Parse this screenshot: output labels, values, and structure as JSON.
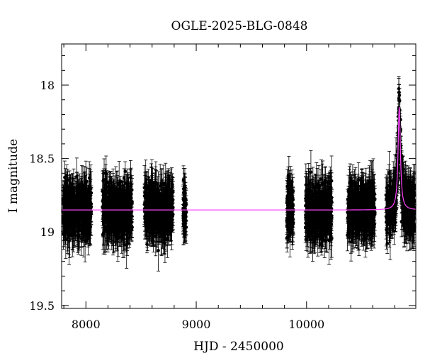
{
  "chart_data": {
    "type": "scatter",
    "title": "OGLE-2025-BLG-0848",
    "xlabel": "HJD - 2450000",
    "ylabel": "I magnitude",
    "xlim": [
      7780,
      10990
    ],
    "ylim": [
      19.52,
      17.72
    ],
    "y_inverted": true,
    "x_ticks": [
      8000,
      9000,
      10000
    ],
    "y_ticks": [
      18,
      18.5,
      19,
      19.5
    ],
    "x_ticklabels": [
      "8000",
      "9000",
      "10000"
    ],
    "y_ticklabels": [
      "18",
      "18.5",
      "19",
      "19.5"
    ],
    "grid": false,
    "legend": "none",
    "colors": {
      "points": "#000000",
      "model": "#ff44ff"
    },
    "baseline_magnitude": 18.85,
    "observing_seasons": [
      {
        "start": 7790,
        "end": 8050,
        "mean_mag": 18.85,
        "scatter": 0.08
      },
      {
        "start": 8150,
        "end": 8420,
        "mean_mag": 18.85,
        "scatter": 0.08
      },
      {
        "start": 8530,
        "end": 8790,
        "mean_mag": 18.85,
        "scatter": 0.08
      },
      {
        "start": 8880,
        "end": 8910,
        "mean_mag": 18.85,
        "scatter": 0.06
      },
      {
        "start": 9820,
        "end": 9880,
        "mean_mag": 18.85,
        "scatter": 0.08
      },
      {
        "start": 9990,
        "end": 10230,
        "mean_mag": 18.86,
        "scatter": 0.09
      },
      {
        "start": 10370,
        "end": 10620,
        "mean_mag": 18.86,
        "scatter": 0.09
      },
      {
        "start": 10720,
        "end": 10980,
        "mean_mag": 18.85,
        "scatter": 0.08
      }
    ],
    "event": {
      "t0": 10840,
      "peak_magnitude": 18.15,
      "observed_peak_magnitude": 18.05,
      "width_days": 22
    }
  }
}
